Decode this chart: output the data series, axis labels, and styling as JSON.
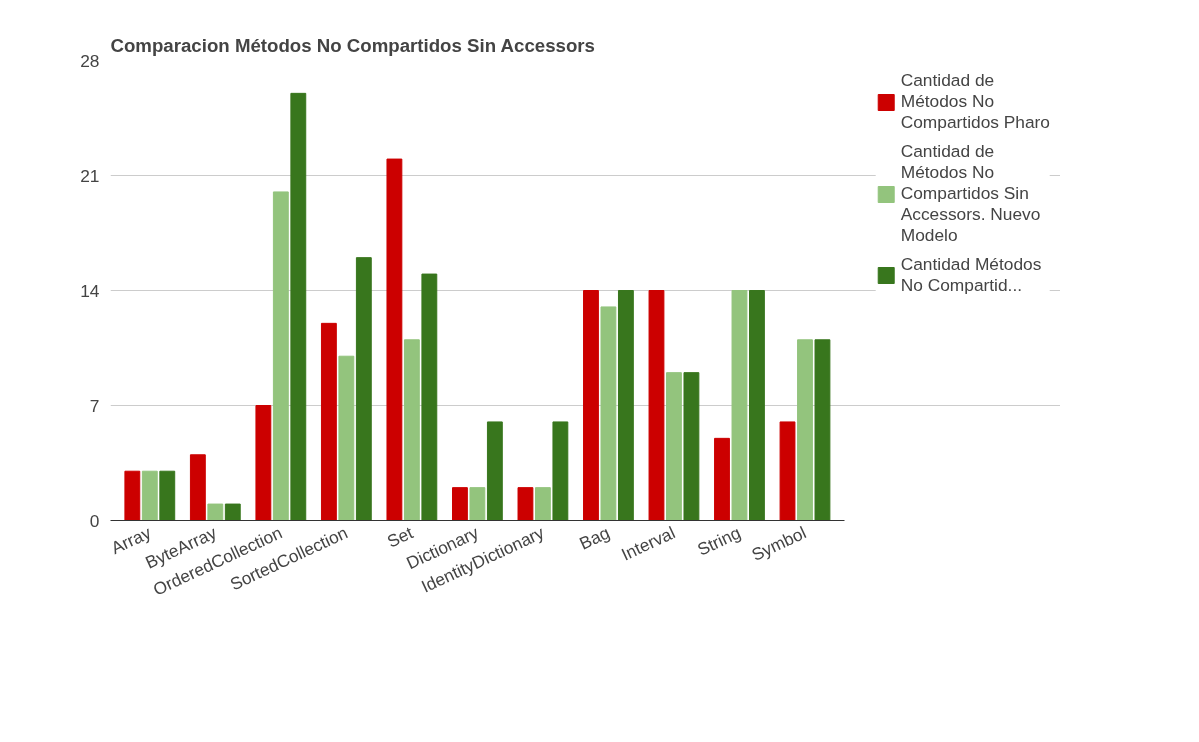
{
  "chart_data": {
    "type": "bar",
    "title": "Comparacion Métodos No Compartidos Sin Accessors",
    "categories": [
      "Array",
      "ByteArray",
      "OrderedCollection",
      "SortedCollection",
      "Set",
      "Dictionary",
      "IdentityDictionary",
      "Bag",
      "Interval",
      "String",
      "Symbol"
    ],
    "series": [
      {
        "name": "Cantidad de Métodos No Compartidos Pharo",
        "color": "#cc0000",
        "values": [
          3,
          4,
          7,
          12,
          22,
          2,
          2,
          14,
          14,
          5,
          6
        ]
      },
      {
        "name": "Cantidad de Métodos No Compartidos Sin Accessors. Nuevo Modelo",
        "color": "#93c47d",
        "values": [
          3,
          1,
          20,
          10,
          11,
          2,
          2,
          13,
          9,
          14,
          11
        ]
      },
      {
        "name": "Cantidad Métodos No Compartid...",
        "color": "#38761d",
        "values": [
          3,
          1,
          26,
          16,
          15,
          6,
          6,
          14,
          9,
          14,
          11
        ]
      }
    ],
    "ylim": [
      0,
      28
    ],
    "yticks": [
      0,
      7,
      14,
      21,
      28
    ],
    "grid": "y",
    "legend": "right"
  }
}
